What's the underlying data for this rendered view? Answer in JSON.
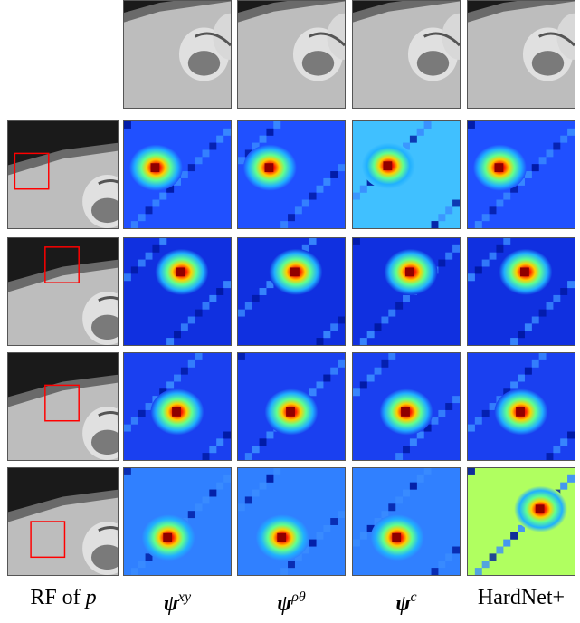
{
  "columns": [
    {
      "key": "rf",
      "caption_text": "RF of ",
      "caption_var": "p"
    },
    {
      "key": "xy",
      "caption_text": "",
      "caption_symbol": "ψ",
      "caption_sup": "xy"
    },
    {
      "key": "rho_theta",
      "caption_text": "",
      "caption_symbol": "ψ",
      "caption_sup": "ρθ"
    },
    {
      "key": "c",
      "caption_text": "",
      "caption_symbol": "ψ",
      "caption_sup": "c"
    },
    {
      "key": "hardnet",
      "caption_text": "HardNet+"
    }
  ],
  "rows": [
    {
      "rf_box": "left-middle",
      "maps": [
        "hot-spot-left",
        "hot-spot-left",
        "hot-spot-wide",
        "hot-spot-left"
      ]
    },
    {
      "rf_box": "upper-right",
      "maps": [
        "hot-spot-top",
        "hot-spot-top",
        "hot-spot-top",
        "hot-spot-top"
      ]
    },
    {
      "rf_box": "center-right",
      "maps": [
        "hot-spot-center",
        "hot-spot-center",
        "hot-spot-center",
        "hot-spot-center"
      ]
    },
    {
      "rf_box": "lower-left",
      "maps": [
        "hot-spot-lower",
        "hot-spot-lower",
        "hot-spot-lower",
        "hot-spot-upper-right"
      ]
    }
  ],
  "colors": {
    "rf_box": "#ff0000",
    "cold": "#0000c8",
    "hot": "#c80000"
  }
}
